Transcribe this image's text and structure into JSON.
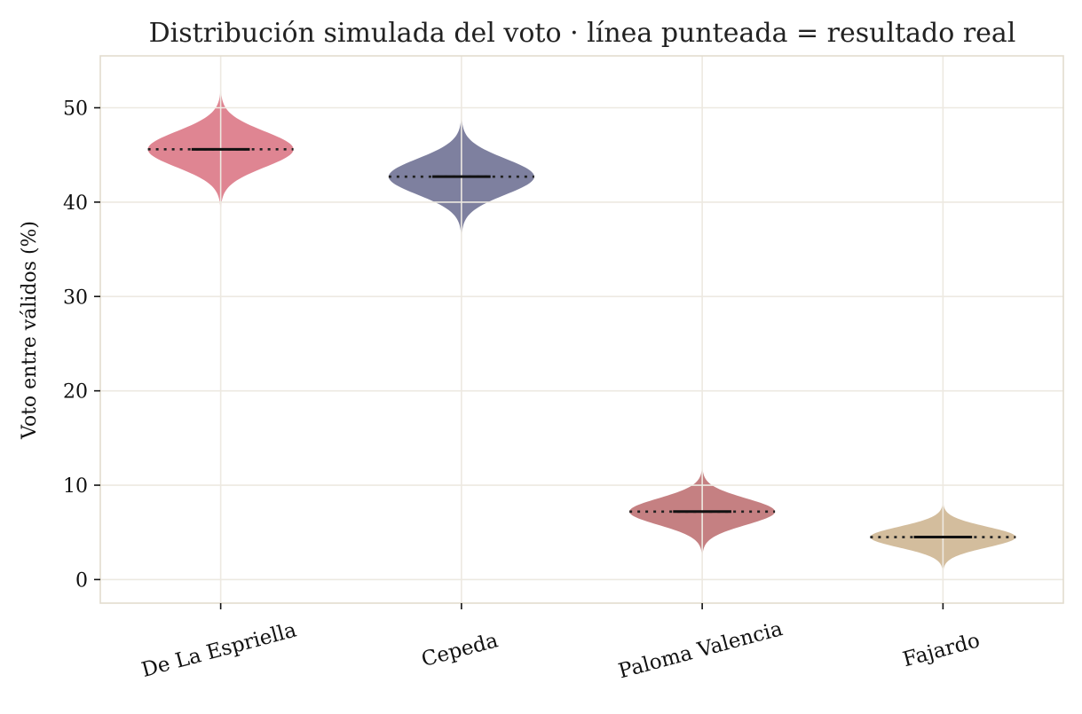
{
  "chart_data": {
    "type": "violin",
    "title": "Distribución simulada del voto · línea punteada = resultado real",
    "xlabel": "",
    "ylabel": "Voto entre válidos (%)",
    "ylim": [
      -2.5,
      55.5
    ],
    "yticks": [
      0,
      10,
      20,
      30,
      40,
      50
    ],
    "grid": true,
    "categories": [
      "De La Espriella",
      "Cepeda",
      "Paloma Valencia",
      "Fajardo"
    ],
    "series": [
      {
        "category": "De La Espriella",
        "median": 45.6,
        "actual": 45.6,
        "min": 39.0,
        "max": 52.5,
        "spread": 1.9,
        "color": "#d9707f"
      },
      {
        "category": "Cepeda",
        "median": 42.7,
        "actual": 42.7,
        "min": 36.0,
        "max": 49.5,
        "spread": 1.9,
        "color": "#676a8e"
      },
      {
        "category": "Paloma Valencia",
        "median": 7.2,
        "actual": 7.2,
        "min": 2.3,
        "max": 12.2,
        "spread": 1.4,
        "color": "#bb6a6c"
      },
      {
        "category": "Fajardo",
        "median": 4.5,
        "actual": 4.5,
        "min": 0.5,
        "max": 8.5,
        "spread": 1.1,
        "color": "#cbb18c"
      }
    ],
    "colors": {
      "grid": "#ede9e1",
      "spine": "#e2dccf",
      "median": "#111111"
    }
  }
}
